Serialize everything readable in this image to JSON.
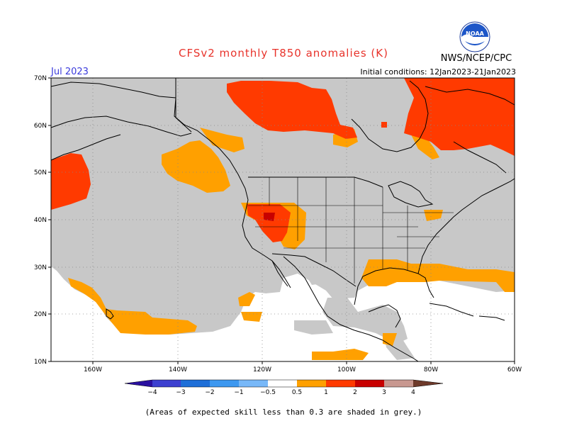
{
  "header": {
    "title": "CFSv2 monthly T850 anomalies (K)",
    "month": "Jul 2023",
    "initial_conditions": "Initial conditions: 12Jan2023-21Jan2023",
    "agency": "NWS/NCEP/CPC",
    "logo_text": "NOAA"
  },
  "axes": {
    "lat_labels": [
      "70N",
      "60N",
      "50N",
      "40N",
      "30N",
      "20N",
      "10N"
    ],
    "lon_labels": [
      "160W",
      "140W",
      "120W",
      "100W",
      "80W",
      "60W"
    ]
  },
  "colorbar": {
    "tick_labels": [
      "−4",
      "−3",
      "−2",
      "−1",
      "−0.5",
      "0.5",
      "1",
      "2",
      "3",
      "4"
    ],
    "colors": [
      "#2a10a0",
      "#3d40d0",
      "#1e6fd8",
      "#3d98f0",
      "#78b8f8",
      "#ffffff",
      "#ffa000",
      "#ff3a00",
      "#c80000",
      "#8c1010",
      "#c89890",
      "#6e3a2a"
    ]
  },
  "map_colors": {
    "skill_mask": "#c8c8c8",
    "anom_0_5_to_1": "#ffa000",
    "anom_1_to_2": "#ff3a00",
    "anom_2_to_3": "#c80000"
  },
  "footnote": "(Areas of expected skill less than 0.3 are shaded in grey.)"
}
